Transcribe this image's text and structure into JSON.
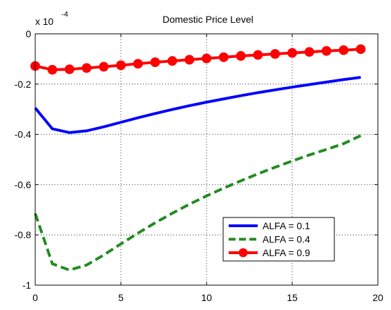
{
  "chart_data": {
    "type": "line",
    "title": "Domestic Price Level",
    "xlabel": "",
    "ylabel": "",
    "y_exponent_base": "x 10",
    "y_exponent_power": "-4",
    "xlim": [
      0,
      20
    ],
    "ylim": [
      -1,
      0
    ],
    "x_ticks": [
      0,
      5,
      10,
      15,
      20
    ],
    "x_tick_labels": [
      "0",
      "5",
      "10",
      "15",
      "20"
    ],
    "y_ticks": [
      -1,
      -0.8,
      -0.6,
      -0.4,
      -0.2,
      0
    ],
    "y_tick_labels": [
      "-1",
      "-0.8",
      "-0.6",
      "-0.4",
      "-0.2",
      "0"
    ],
    "grid": true,
    "legend_position": "bottom-right",
    "x": [
      0,
      1,
      2,
      3,
      4,
      5,
      6,
      7,
      8,
      9,
      10,
      11,
      12,
      13,
      14,
      15,
      16,
      17,
      18,
      19
    ],
    "series": [
      {
        "name": "ALFA = 0.1",
        "color": "#0000ff",
        "style": "solid",
        "values": [
          -0.295,
          -0.378,
          -0.393,
          -0.386,
          -0.37,
          -0.352,
          -0.334,
          -0.317,
          -0.301,
          -0.286,
          -0.272,
          -0.259,
          -0.246,
          -0.234,
          -0.223,
          -0.212,
          -0.202,
          -0.192,
          -0.182,
          -0.173
        ]
      },
      {
        "name": "ALFA = 0.4",
        "color": "#228b22",
        "style": "dashed",
        "values": [
          -0.715,
          -0.915,
          -0.94,
          -0.92,
          -0.88,
          -0.836,
          -0.793,
          -0.752,
          -0.714,
          -0.678,
          -0.645,
          -0.614,
          -0.585,
          -0.557,
          -0.531,
          -0.506,
          -0.482,
          -0.46,
          -0.437,
          -0.405
        ]
      },
      {
        "name": "ALFA = 0.9",
        "color": "#ff0000",
        "style": "solid-markers",
        "values": [
          -0.128,
          -0.143,
          -0.141,
          -0.136,
          -0.131,
          -0.125,
          -0.119,
          -0.113,
          -0.108,
          -0.103,
          -0.098,
          -0.093,
          -0.088,
          -0.084,
          -0.08,
          -0.076,
          -0.072,
          -0.068,
          -0.065,
          -0.061
        ]
      }
    ]
  }
}
